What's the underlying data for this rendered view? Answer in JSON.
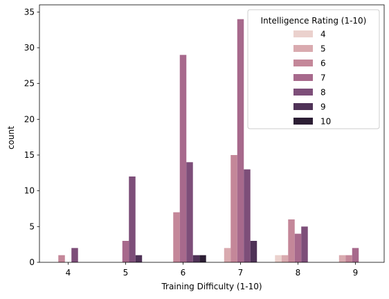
{
  "chart_data": {
    "type": "bar",
    "xlabel": "Training Difficulty (1-10)",
    "ylabel": "count",
    "categories": [
      "4",
      "5",
      "6",
      "7",
      "8",
      "9"
    ],
    "ylim": [
      0,
      36
    ],
    "yticks": [
      0,
      5,
      10,
      15,
      20,
      25,
      30,
      35
    ],
    "grid": false,
    "legend": {
      "title": "Intelligence Rating (1-10)",
      "placement": "top-right"
    },
    "series": [
      {
        "name": "4",
        "color": "#ebd1cd",
        "values": [
          0,
          0,
          0,
          0,
          1,
          0
        ]
      },
      {
        "name": "5",
        "color": "#d9aaaf",
        "values": [
          0,
          0,
          0,
          2,
          1,
          1
        ]
      },
      {
        "name": "6",
        "color": "#c48799",
        "values": [
          1,
          0,
          7,
          15,
          6,
          1
        ]
      },
      {
        "name": "7",
        "color": "#a7698c",
        "values": [
          0,
          3,
          29,
          34,
          4,
          2
        ]
      },
      {
        "name": "8",
        "color": "#7d4e79",
        "values": [
          2,
          12,
          14,
          13,
          5,
          0
        ]
      },
      {
        "name": "9",
        "color": "#4f3257",
        "values": [
          0,
          1,
          1,
          3,
          0,
          0
        ]
      },
      {
        "name": "10",
        "color": "#2c1e34",
        "values": [
          0,
          0,
          1,
          0,
          0,
          0
        ]
      }
    ]
  }
}
